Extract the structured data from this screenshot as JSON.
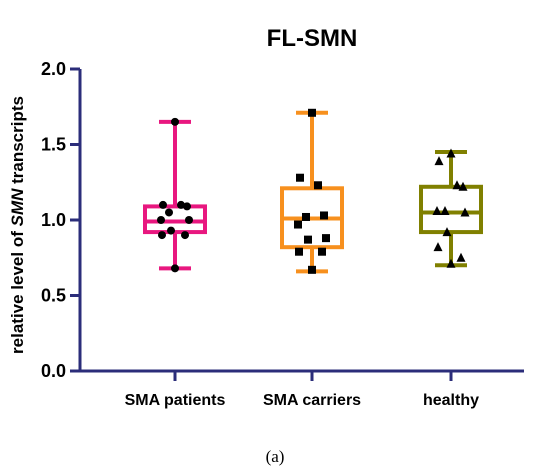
{
  "chart_data": {
    "type": "box",
    "title": "FL-SMN",
    "ylabel_parts": [
      "relative level of ",
      "SMN",
      " transcripts"
    ],
    "caption": "(a)",
    "ylim": [
      0.0,
      2.0
    ],
    "yticks": [
      0.0,
      0.5,
      1.0,
      1.5,
      2.0
    ],
    "ytick_labels": [
      "0.0",
      "0.5",
      "1.0",
      "1.5",
      "2.0"
    ],
    "axis_color": "#2b2d7a",
    "categories": [
      "SMA patients",
      "SMA carriers",
      "healthy"
    ],
    "groups": [
      {
        "name": "SMA patients",
        "color": "#e8177f",
        "marker": "circle",
        "min": 0.68,
        "q1": 0.92,
        "median": 0.99,
        "q3": 1.09,
        "max": 1.65,
        "points": [
          1.65,
          1.1,
          1.1,
          1.09,
          1.05,
          1.0,
          1.0,
          0.93,
          0.9,
          0.9,
          0.68
        ]
      },
      {
        "name": "SMA carriers",
        "color": "#f7901e",
        "marker": "square",
        "min": 0.66,
        "q1": 0.82,
        "median": 1.01,
        "q3": 1.21,
        "max": 1.71,
        "points": [
          1.71,
          1.28,
          1.23,
          1.03,
          1.02,
          0.97,
          0.88,
          0.87,
          0.79,
          0.79,
          0.67
        ]
      },
      {
        "name": "healthy",
        "color": "#808000",
        "marker": "triangle",
        "min": 0.7,
        "q1": 0.92,
        "median": 1.05,
        "q3": 1.22,
        "max": 1.45,
        "points": [
          1.44,
          1.39,
          1.23,
          1.22,
          1.06,
          1.06,
          1.05,
          0.92,
          0.82,
          0.75,
          0.71
        ]
      }
    ]
  }
}
